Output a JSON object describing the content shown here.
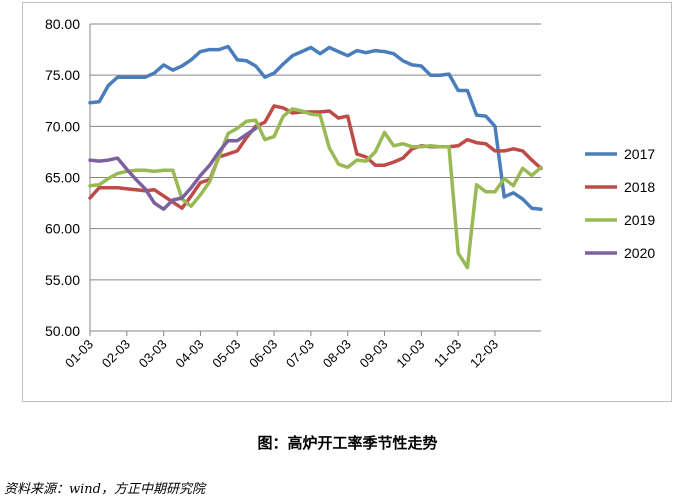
{
  "caption": "图：高炉开工率季节性走势",
  "source": "资料来源：wind，方正中期研究院",
  "chart_data": {
    "type": "line",
    "title": "",
    "xlabel": "",
    "ylabel": "",
    "ylim": [
      50,
      80
    ],
    "yticks": [
      "50.00",
      "55.00",
      "60.00",
      "65.00",
      "70.00",
      "75.00",
      "80.00"
    ],
    "xticks": [
      "01-03",
      "02-03",
      "03-03",
      "04-03",
      "05-03",
      "06-03",
      "07-03",
      "08-03",
      "09-03",
      "10-03",
      "11-03",
      "12-03"
    ],
    "grid": "horizontal",
    "legend": "right",
    "series": [
      {
        "name": "2017",
        "color": "#4a7ebb",
        "x": [
          1,
          1.5,
          2,
          2.5,
          3,
          3.5,
          4,
          4.5,
          5,
          5.5,
          6,
          6.5,
          7,
          7.5,
          8,
          8.5,
          9,
          9.5,
          10,
          10.5,
          11,
          11.5,
          12,
          12.5,
          13,
          13.5,
          14,
          14.5,
          15,
          15.5,
          16,
          16.5,
          17,
          17.5,
          18,
          18.5,
          19,
          19.5,
          20,
          20.5,
          21,
          21.5,
          22,
          22.5,
          23,
          23.5,
          24,
          24.5,
          25,
          25.5
        ],
        "values": [
          72.3,
          72.4,
          74.0,
          74.8,
          74.8,
          74.8,
          74.8,
          75.2,
          76.0,
          75.5,
          75.9,
          76.5,
          77.3,
          77.5,
          77.5,
          77.8,
          76.5,
          76.4,
          75.9,
          74.8,
          75.2,
          76.1,
          76.9,
          77.3,
          77.7,
          77.1,
          77.7,
          77.3,
          76.9,
          77.4,
          77.2,
          77.4,
          77.3,
          77.1,
          76.4,
          76.0,
          75.9,
          75.0,
          75.0,
          75.1,
          73.5,
          73.5,
          71.1,
          71.0,
          70.0,
          63.1,
          63.5,
          62.9,
          62.0,
          61.9
        ]
      },
      {
        "name": "2018",
        "color": "#be4b48",
        "x": [
          1,
          1.5,
          2,
          2.5,
          3,
          3.5,
          4,
          4.5,
          5,
          5.5,
          6,
          6.5,
          7,
          7.5,
          8,
          8.5,
          9,
          9.5,
          10,
          10.5,
          11,
          11.5,
          12,
          12.5,
          13,
          13.5,
          14,
          14.5,
          15,
          15.5,
          16,
          16.5,
          17,
          17.5,
          18,
          18.5,
          19,
          19.5,
          20,
          20.5,
          21,
          21.5,
          22,
          22.5,
          23,
          23.5,
          24,
          24.5,
          25,
          25.5
        ],
        "values": [
          63.0,
          64.0,
          64.0,
          64.0,
          63.9,
          63.8,
          63.7,
          63.8,
          63.2,
          62.6,
          62.0,
          63.2,
          64.5,
          64.8,
          67.0,
          67.3,
          67.6,
          68.9,
          70.0,
          70.4,
          72.0,
          71.8,
          71.3,
          71.4,
          71.4,
          71.4,
          71.5,
          70.8,
          71.0,
          67.3,
          67.0,
          66.2,
          66.2,
          66.5,
          66.9,
          67.8,
          68.1,
          68.0,
          68.0,
          68.0,
          68.1,
          68.7,
          68.4,
          68.3,
          67.6,
          67.6,
          67.8,
          67.6,
          66.7,
          65.9
        ]
      },
      {
        "name": "2019",
        "color": "#98b954",
        "x": [
          1,
          1.5,
          2,
          2.5,
          3,
          3.5,
          4,
          4.5,
          5,
          5.5,
          6,
          6.5,
          7,
          7.5,
          8,
          8.5,
          9,
          9.5,
          10,
          10.5,
          11,
          11.5,
          12,
          12.5,
          13,
          13.5,
          14,
          14.5,
          15,
          15.5,
          16,
          16.5,
          17,
          17.5,
          18,
          18.5,
          19,
          19.5,
          20,
          20.5,
          21,
          21.5,
          22,
          22.5,
          23,
          23.5,
          24,
          24.5,
          25,
          25.5
        ],
        "values": [
          64.2,
          64.3,
          64.9,
          65.4,
          65.6,
          65.7,
          65.7,
          65.6,
          65.7,
          65.7,
          62.9,
          62.2,
          63.3,
          64.6,
          67.0,
          69.3,
          69.8,
          70.5,
          70.6,
          68.7,
          69.0,
          71.0,
          71.7,
          71.5,
          71.2,
          71.1,
          67.9,
          66.3,
          66.0,
          66.7,
          66.6,
          67.5,
          69.4,
          68.1,
          68.3,
          68.0,
          68.0,
          68.1,
          68.0,
          68.0,
          57.6,
          56.2,
          64.3,
          63.6,
          63.6,
          64.9,
          64.2,
          65.9,
          65.2,
          66.0
        ]
      },
      {
        "name": "2020",
        "color": "#7d60a0",
        "x": [
          1,
          1.5,
          2,
          2.5,
          3,
          3.5,
          4,
          4.5,
          5,
          5.5,
          6,
          6.5,
          7,
          7.5,
          8,
          8.5,
          9,
          9.5,
          10
        ],
        "values": [
          66.7,
          66.6,
          66.7,
          66.9,
          65.8,
          64.8,
          63.9,
          62.5,
          61.9,
          62.8,
          63.0,
          64.0,
          65.2,
          66.2,
          67.5,
          68.6,
          68.6,
          69.2,
          69.8
        ]
      }
    ]
  }
}
